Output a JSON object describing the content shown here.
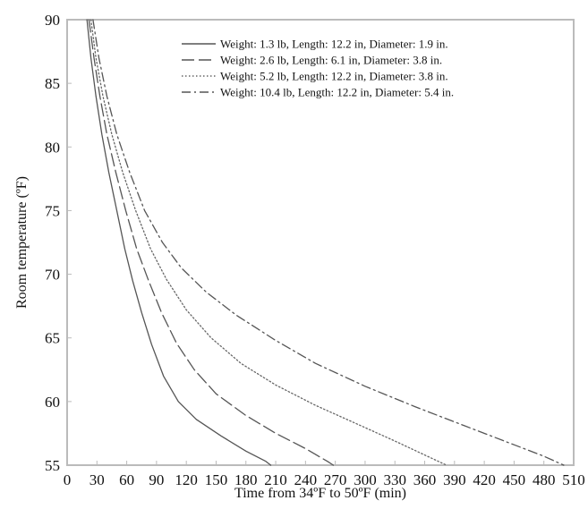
{
  "chart_data": {
    "type": "line",
    "title": "",
    "xlabel": "Time from 34ºF to 50ºF (min)",
    "ylabel": "Room temperature (ºF)",
    "xlim": [
      0,
      510
    ],
    "ylim": [
      55,
      90
    ],
    "x_ticks": [
      0,
      30,
      60,
      90,
      120,
      150,
      180,
      210,
      240,
      270,
      300,
      330,
      360,
      390,
      420,
      450,
      480,
      510
    ],
    "y_ticks": [
      55,
      60,
      65,
      70,
      75,
      80,
      85,
      90
    ],
    "grid": false,
    "legend_position": "top-right",
    "series": [
      {
        "name": "Weight: 1.3 lb, Length: 12.2 in, Diameter: 1.9 in.",
        "line_style": "solid",
        "color": "#555555",
        "points": [
          [
            20,
            90
          ],
          [
            24,
            87
          ],
          [
            29,
            84
          ],
          [
            35,
            81
          ],
          [
            42,
            78
          ],
          [
            50,
            75
          ],
          [
            58,
            72
          ],
          [
            66,
            69.5
          ],
          [
            75,
            67
          ],
          [
            85,
            64.5
          ],
          [
            97,
            62
          ],
          [
            112,
            60
          ],
          [
            130,
            58.6
          ],
          [
            155,
            57.3
          ],
          [
            180,
            56.1
          ],
          [
            200,
            55.3
          ],
          [
            205,
            55
          ]
        ]
      },
      {
        "name": "Weight: 2.6 lb, Length: 6.1 in, Diameter: 3.8 in.",
        "line_style": "long-dash",
        "color": "#555555",
        "points": [
          [
            22,
            90
          ],
          [
            27,
            87
          ],
          [
            33,
            84
          ],
          [
            40,
            81
          ],
          [
            49,
            78
          ],
          [
            59,
            75
          ],
          [
            70,
            72
          ],
          [
            82,
            69.5
          ],
          [
            95,
            67
          ],
          [
            110,
            64.6
          ],
          [
            128,
            62.5
          ],
          [
            150,
            60.6
          ],
          [
            180,
            58.9
          ],
          [
            210,
            57.5
          ],
          [
            240,
            56.3
          ],
          [
            262,
            55.3
          ],
          [
            268,
            55
          ]
        ]
      },
      {
        "name": "Weight: 5.2 lb, Length: 12.2 in, Diameter: 3.8 in.",
        "line_style": "dotted",
        "color": "#666666",
        "points": [
          [
            24,
            90
          ],
          [
            29,
            87
          ],
          [
            36,
            84
          ],
          [
            45,
            81
          ],
          [
            56,
            78
          ],
          [
            69,
            75
          ],
          [
            84,
            72
          ],
          [
            100,
            69.6
          ],
          [
            120,
            67.2
          ],
          [
            145,
            65
          ],
          [
            175,
            63
          ],
          [
            210,
            61.3
          ],
          [
            250,
            59.7
          ],
          [
            290,
            58.3
          ],
          [
            330,
            56.9
          ],
          [
            360,
            55.8
          ],
          [
            382,
            55
          ]
        ]
      },
      {
        "name": "Weight: 10.4 lb, Length: 12.2 in, Diameter: 5.4 in.",
        "line_style": "dash-dot",
        "color": "#555555",
        "points": [
          [
            26,
            90
          ],
          [
            32,
            87
          ],
          [
            40,
            84
          ],
          [
            50,
            81
          ],
          [
            63,
            78
          ],
          [
            78,
            75
          ],
          [
            96,
            72.5
          ],
          [
            115,
            70.5
          ],
          [
            140,
            68.6
          ],
          [
            170,
            66.8
          ],
          [
            210,
            64.8
          ],
          [
            250,
            63
          ],
          [
            300,
            61.2
          ],
          [
            350,
            59.6
          ],
          [
            400,
            58.1
          ],
          [
            450,
            56.6
          ],
          [
            480,
            55.7
          ],
          [
            500,
            55
          ]
        ]
      }
    ]
  }
}
